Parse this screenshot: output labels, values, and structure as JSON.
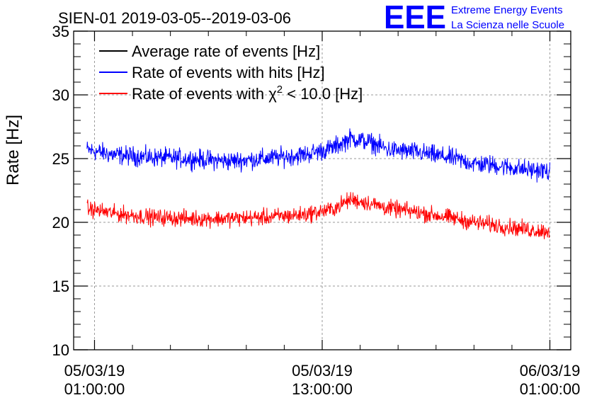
{
  "chart_data": {
    "type": "line",
    "title": "SIEN-01 2019-03-05--2019-03-06",
    "ylabel": "Rate [Hz]",
    "xlabel": "",
    "ylim": [
      10,
      35
    ],
    "xlim_hours": [
      -1.1,
      25.1
    ],
    "y_ticks": [
      "10",
      "15",
      "20",
      "25",
      "30",
      "35"
    ],
    "x_ticks": [
      {
        "hour": 0,
        "date": "05/03/19",
        "time": "01:00:00"
      },
      {
        "hour": 12,
        "date": "05/03/19",
        "time": "13:00:00"
      },
      {
        "hour": 24,
        "date": "06/03/19",
        "time": "01:00:00"
      }
    ],
    "legend": {
      "position": "top-left",
      "entries": [
        {
          "name": "Average rate of events [Hz]",
          "color": "#000000"
        },
        {
          "name": "Rate of events with hits [Hz]",
          "color": "#0000ff"
        },
        {
          "name_prefix": "Rate of events with ",
          "name_symbol": "χ",
          "name_sup": "2",
          "name_suffix": " < 10.0 [Hz]",
          "color": "#ff0000"
        }
      ]
    },
    "series": [
      {
        "name": "Average rate of events [Hz]",
        "color": "#000000",
        "x_hours": [],
        "values": []
      },
      {
        "name": "Rate of events with hits [Hz]",
        "color": "#0000ff",
        "noise_amplitude": 0.7,
        "x_hours": [
          -0.4,
          1,
          3,
          5,
          7,
          9,
          11,
          12.5,
          13.5,
          14.5,
          15.5,
          17,
          19,
          20,
          21,
          22,
          23,
          24
        ],
        "values": [
          25.7,
          25.3,
          25.1,
          25.0,
          24.8,
          25.0,
          25.3,
          25.8,
          26.6,
          26.3,
          25.7,
          25.5,
          25.0,
          24.6,
          24.5,
          24.3,
          24.1,
          24.0
        ]
      },
      {
        "name": "Rate of events with χ2 < 10.0 [Hz]",
        "color": "#ff0000",
        "noise_amplitude": 0.6,
        "x_hours": [
          -0.4,
          1,
          3,
          5,
          7,
          9,
          11,
          12.5,
          13.5,
          14.5,
          15.5,
          17,
          19,
          20,
          21,
          22,
          23,
          24
        ],
        "values": [
          21.1,
          20.7,
          20.4,
          20.3,
          20.3,
          20.4,
          20.6,
          21.0,
          21.8,
          21.5,
          21.1,
          20.8,
          20.3,
          20.0,
          19.8,
          19.6,
          19.4,
          19.3
        ]
      }
    ]
  },
  "logo": {
    "mark": "EEE",
    "line1": "Extreme Energy Events",
    "line2": "La Scienza nelle Scuole",
    "color": "#0000ff"
  }
}
